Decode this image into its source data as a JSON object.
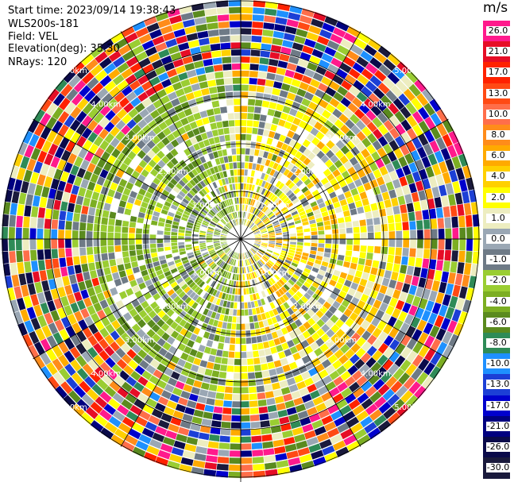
{
  "header": {
    "start_time": "Start time: 2023/09/14 19:38:43",
    "instrument": "WLS200s-181",
    "field": "Field: VEL",
    "elevation": "Elevation(deg): 35.30",
    "nrays": "NRays: 120"
  },
  "colorbar": {
    "unit": "m/s",
    "labels": [
      "26.0",
      "21.0",
      "17.0",
      "13.0",
      "10.0",
      "8.0",
      "6.0",
      "4.0",
      "2.0",
      "1.0",
      "0.0",
      "-1.0",
      "-2.0",
      "-4.0",
      "-6.0",
      "-8.0",
      "-10.0",
      "-13.0",
      "-17.0",
      "-21.0",
      "-26.0",
      "-30.0"
    ],
    "colors": [
      "#ff1a8c",
      "#e60d26",
      "#ff2200",
      "#ff4a14",
      "#ff6e4a",
      "#ff8c1a",
      "#ffaa00",
      "#ffd000",
      "#ffff00",
      "#ededc0",
      "#9aa7b4",
      "#6e7a86",
      "#9acd32",
      "#7cae22",
      "#5a8a1e",
      "#2e8b57",
      "#1e90ff",
      "#1c3fd6",
      "#0000cd",
      "#000080",
      "#0a0a4a",
      "#1a1a3c"
    ]
  },
  "range_rings": [
    {
      "label": "1.00km",
      "km": 1
    },
    {
      "label": "2.00km",
      "km": 2
    },
    {
      "label": "3.00km",
      "km": 3
    },
    {
      "label": "4.00km",
      "km": 4
    },
    {
      "label": "5.00km",
      "km": 5
    }
  ]
}
